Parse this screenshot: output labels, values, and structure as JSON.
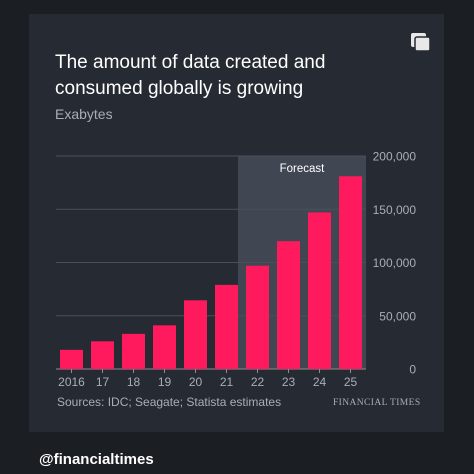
{
  "chart_data": {
    "type": "bar",
    "title": "The amount of data created and consumed globally is growing",
    "subtitle": "Exabytes",
    "categories": [
      "2016",
      "17",
      "18",
      "19",
      "20",
      "21",
      "22",
      "23",
      "24",
      "25"
    ],
    "values": [
      18000,
      26000,
      33000,
      41000,
      64500,
      79000,
      97000,
      120000,
      147000,
      181000
    ],
    "y_ticks": [
      "200,000",
      "150,000",
      "100,000",
      "50,000",
      "0"
    ],
    "ylim": [
      0,
      200000
    ],
    "forecast_label": "Forecast",
    "forecast_categories": [
      "22",
      "23",
      "24",
      "25"
    ],
    "bar_color": "#ff1a5e",
    "forecast_band_color": "#404652",
    "grid": true,
    "y_axis_position": "right"
  },
  "footer": {
    "sources": "Sources: IDC; Seagate; Statista estimates",
    "brand": "FINANCIAL TIMES"
  },
  "social_handle": "@financialtimes",
  "icons": {
    "top_right": "copy-icon"
  }
}
